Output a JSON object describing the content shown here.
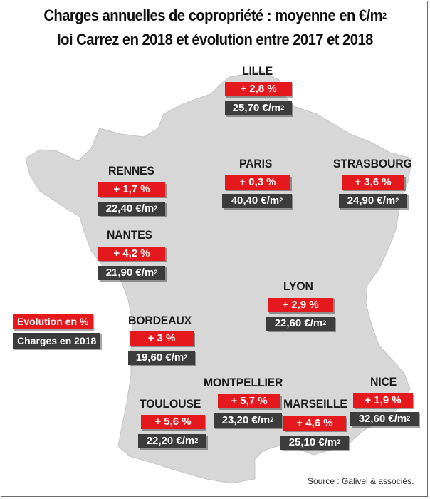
{
  "title": {
    "line1_text": "Charges annuelles de copropriété : moyenne en €/m",
    "line1_sup": "2",
    "line2": "loi Carrez en 2018 et évolution entre 2017 et 2018"
  },
  "unit": {
    "text": "€/m",
    "sup": "2"
  },
  "legend": {
    "evolution": "Evolution en %",
    "charges": "Charges en 2018"
  },
  "colors": {
    "evolution_box": "#e5191d",
    "charges_box": "#3c3c3c",
    "map_fill": "#d7d7d7"
  },
  "cities": {
    "lille": {
      "name": "LILLE",
      "evolution": "+ 2,8 %",
      "charges": "25,70"
    },
    "paris": {
      "name": "PARIS",
      "evolution": "+ 0,3 %",
      "charges": "40,40"
    },
    "strasbourg": {
      "name": "STRASBOURG",
      "evolution": "+ 3,6 %",
      "charges": "24,90"
    },
    "rennes": {
      "name": "RENNES",
      "evolution": "+ 1,7 %",
      "charges": "22,40"
    },
    "nantes": {
      "name": "NANTES",
      "evolution": "+ 4,2 %",
      "charges": "21,90"
    },
    "lyon": {
      "name": "LYON",
      "evolution": "+ 2,9 %",
      "charges": "22,60"
    },
    "bordeaux": {
      "name": "BORDEAUX",
      "evolution": "+ 3 %",
      "charges": "19,60"
    },
    "montpellier": {
      "name": "MONTPELLIER",
      "evolution": "+ 5,7 %",
      "charges": "23,20"
    },
    "nice": {
      "name": "NICE",
      "evolution": "+ 1,9 %",
      "charges": "32,60"
    },
    "toulouse": {
      "name": "TOULOUSE",
      "evolution": "+ 5,6 %",
      "charges": "22,20"
    },
    "marseille": {
      "name": "MARSEILLE",
      "evolution": "+ 4,6 %",
      "charges": "25,10"
    }
  },
  "source": "Source : Galivel & associés."
}
